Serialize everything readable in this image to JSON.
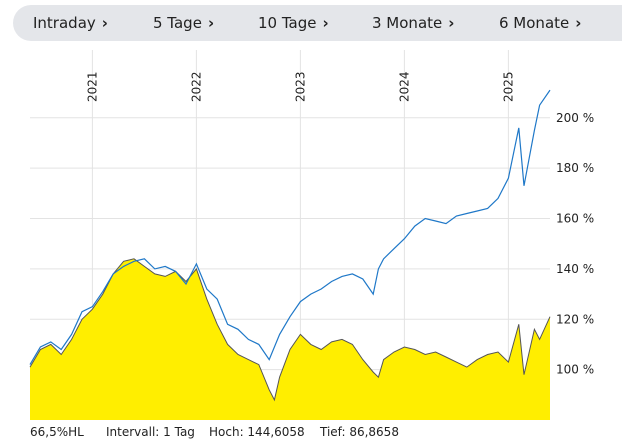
{
  "tabs": [
    {
      "label": "Intraday"
    },
    {
      "label": "5 Tage"
    },
    {
      "label": "10 Tage"
    },
    {
      "label": "3 Monate"
    },
    {
      "label": "6 Monate"
    }
  ],
  "icons": {
    "tab_chevron": "chevron-right-icon"
  },
  "colors": {
    "line": "#1f78c8",
    "area": "#ffee00",
    "area_edge": "#555555",
    "grid": "#e3e3e3",
    "text": "#222222"
  },
  "footer": {
    "hl": "66,5%HL",
    "interval": "Intervall: 1 Tag",
    "high": "Hoch: 144,6058",
    "low": "Tief: 86,8658"
  },
  "chart_data": {
    "type": "line",
    "x_tick_labels": [
      "2021",
      "2022",
      "2023",
      "2024",
      "2025"
    ],
    "y_tick_labels": [
      "100 %",
      "120 %",
      "140 %",
      "160 %",
      "180 %",
      "200 %"
    ],
    "y_ticks": [
      100,
      120,
      140,
      160,
      180,
      200
    ],
    "x_ticks": [
      2021.0,
      2022.0,
      2023.0,
      2024.0,
      2025.0
    ],
    "xlim": [
      2020.4,
      2025.4
    ],
    "ylim": [
      80,
      215
    ],
    "grid": true,
    "series": [
      {
        "style": "line",
        "x": [
          2020.4,
          2020.5,
          2020.6,
          2020.7,
          2020.8,
          2020.9,
          2021.0,
          2021.1,
          2021.2,
          2021.3,
          2021.4,
          2021.5,
          2021.6,
          2021.7,
          2021.8,
          2021.9,
          2022.0,
          2022.1,
          2022.2,
          2022.3,
          2022.4,
          2022.5,
          2022.6,
          2022.7,
          2022.8,
          2022.9,
          2023.0,
          2023.1,
          2023.2,
          2023.3,
          2023.4,
          2023.5,
          2023.6,
          2023.7,
          2023.75,
          2023.8,
          2023.9,
          2024.0,
          2024.1,
          2024.2,
          2024.3,
          2024.4,
          2024.5,
          2024.6,
          2024.7,
          2024.8,
          2024.9,
          2025.0,
          2025.1,
          2025.15,
          2025.25,
          2025.3,
          2025.4
        ],
        "y": [
          102,
          109,
          111,
          108,
          114,
          123,
          125,
          131,
          138,
          141,
          143,
          144,
          140,
          141,
          139,
          134,
          142,
          132,
          128,
          118,
          116,
          112,
          110,
          104,
          114,
          121,
          127,
          130,
          132,
          135,
          137,
          138,
          136,
          130,
          140,
          144,
          148,
          152,
          157,
          160,
          159,
          158,
          161,
          162,
          163,
          164,
          168,
          176,
          196,
          173,
          195,
          205,
          211
        ]
      },
      {
        "style": "area",
        "x": [
          2020.4,
          2020.5,
          2020.6,
          2020.7,
          2020.8,
          2020.9,
          2021.0,
          2021.1,
          2021.2,
          2021.3,
          2021.4,
          2021.5,
          2021.6,
          2021.7,
          2021.8,
          2021.9,
          2022.0,
          2022.1,
          2022.2,
          2022.3,
          2022.4,
          2022.5,
          2022.6,
          2022.7,
          2022.75,
          2022.8,
          2022.9,
          2023.0,
          2023.1,
          2023.2,
          2023.3,
          2023.4,
          2023.5,
          2023.6,
          2023.7,
          2023.75,
          2023.8,
          2023.9,
          2024.0,
          2024.1,
          2024.2,
          2024.3,
          2024.4,
          2024.5,
          2024.6,
          2024.7,
          2024.8,
          2024.9,
          2025.0,
          2025.1,
          2025.15,
          2025.25,
          2025.3,
          2025.4
        ],
        "y": [
          101,
          108,
          110,
          106,
          112,
          120,
          124,
          130,
          138,
          143,
          144,
          141,
          138,
          137,
          139,
          135,
          140,
          128,
          118,
          110,
          106,
          104,
          102,
          92,
          88,
          97,
          108,
          114,
          110,
          108,
          111,
          112,
          110,
          104,
          99,
          97,
          104,
          107,
          109,
          108,
          106,
          107,
          105,
          103,
          101,
          104,
          106,
          107,
          103,
          118,
          98,
          116,
          112,
          121
        ]
      }
    ]
  }
}
